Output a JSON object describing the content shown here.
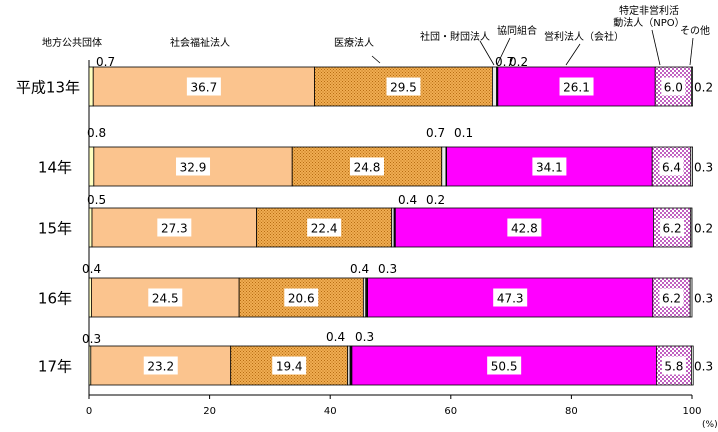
{
  "chart_data": {
    "type": "bar",
    "orientation": "horizontal",
    "stacked": "100%",
    "title": "",
    "xlabel": "",
    "ylabel": "",
    "unit_label": "(%)",
    "xlim": [
      0,
      100
    ],
    "x_ticks": [
      0,
      20,
      40,
      60,
      80,
      100
    ],
    "grid": false,
    "legend": "category labels above the top bar, connected by leader lines",
    "categories": [
      "平成13年",
      "14年",
      "15年",
      "16年",
      "17年"
    ],
    "series": [
      {
        "name": "地方公共団体",
        "color": "#ffffc0",
        "values": [
          0.7,
          0.8,
          0.5,
          0.4,
          0.3
        ]
      },
      {
        "name": "社会福祉法人",
        "color": "#fbc48e",
        "values": [
          36.7,
          32.9,
          27.3,
          24.5,
          23.2
        ]
      },
      {
        "name": "医療法人",
        "color": "#e59a38",
        "values": [
          29.5,
          24.8,
          22.4,
          20.6,
          19.4
        ]
      },
      {
        "name": "社団・財団法人",
        "color": "#e8e8e8",
        "values": [
          0.7,
          0.7,
          0.4,
          0.4,
          0.4
        ]
      },
      {
        "name": "協同組合",
        "color": "#111111",
        "values": [
          0.2,
          0.1,
          0.2,
          0.3,
          0.3
        ]
      },
      {
        "name": "営利法人（会社）",
        "color": "#ff00ff",
        "values": [
          26.1,
          34.1,
          42.8,
          47.3,
          50.5
        ]
      },
      {
        "name": "特定非営利活動法人（NPO）",
        "color": "#d9a0d9",
        "values": [
          6.0,
          6.4,
          6.2,
          6.2,
          5.8
        ]
      },
      {
        "name": "その他",
        "color": "#ffffff",
        "values": [
          0.2,
          0.3,
          0.2,
          0.3,
          0.3
        ]
      }
    ],
    "small_value_labels": [
      [
        "0.7",
        "0.7",
        "0.2"
      ],
      [
        "0.8",
        "0.7",
        "0.1"
      ],
      [
        "0.5",
        "0.4",
        "0.2"
      ],
      [
        "0.4",
        "0.4",
        "0.3"
      ],
      [
        "0.3",
        "0.4",
        "0.3"
      ]
    ],
    "inbar_labels": [
      [
        "36.7",
        "29.5",
        "26.1",
        "6.0"
      ],
      [
        "32.9",
        "24.8",
        "34.1",
        "6.4"
      ],
      [
        "27.3",
        "22.4",
        "42.8",
        "6.2"
      ],
      [
        "24.5",
        "20.6",
        "47.3",
        "6.2"
      ],
      [
        "23.2",
        "19.4",
        "50.5",
        "5.8"
      ]
    ],
    "other_labels": [
      "0.2",
      "0.3",
      "0.2",
      "0.3",
      "0.3"
    ]
  }
}
